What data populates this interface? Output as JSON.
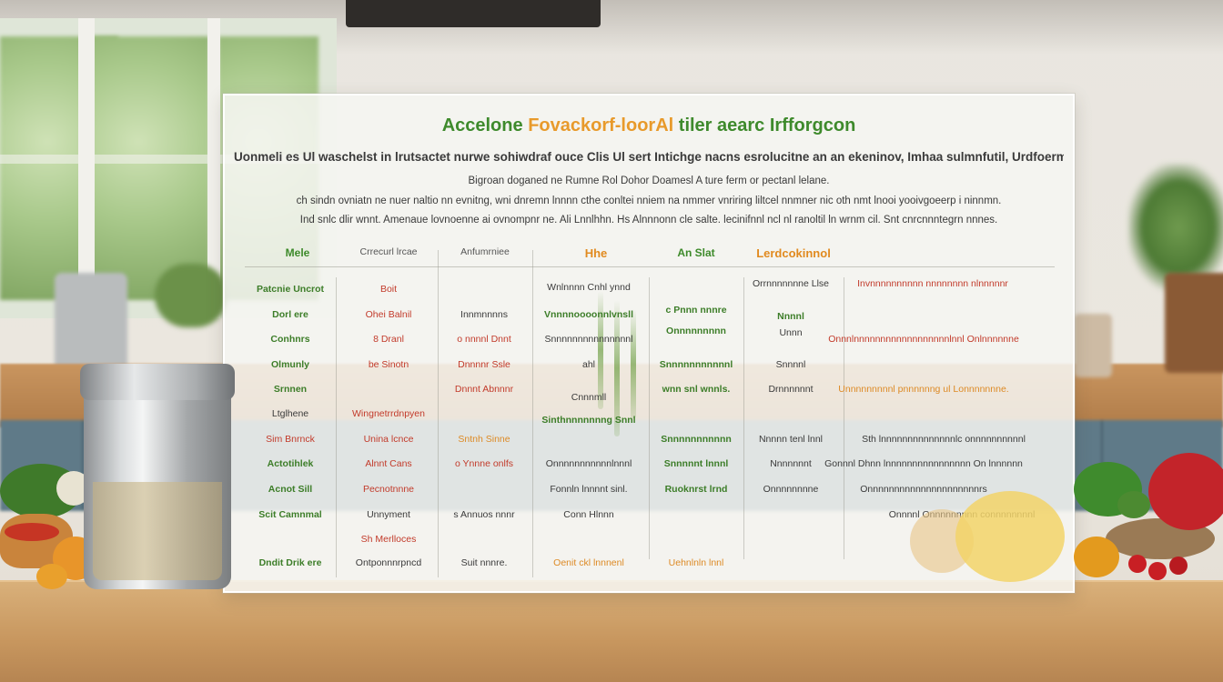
{
  "title": {
    "part1": "Accelone",
    "part2": "Fovackorf-loorAl",
    "part3": "tiler aearc Irfforgcon"
  },
  "intro": [
    "Uonmeli es Ul waschelst in lrutsactet nurwe sohiwdraf ouce Clis Ul sert Intichge nacns esrolucitne an an ekeninov, Imhaa sulmnfutil, Urdfoermite",
    "Bigroan doganed ne Rumne    Rol Dohor Doamesl  A ture ferm or pectanl lelane.",
    "ch sindn ovniatn ne nuer naltio nn evnitng, wni dnremn lnnnn cthe conltei nniem na nmmer vnriring liltcel nnmner nic oth nmt lnooi yooivgoeerp i ninnmn.",
    "Ind snlc dlir wnnt. Amenaue lovnoenne ai ovnompnr ne. Ali Lnnlhhn. Hs Alnnnonn cle salte. lecinifnnl ncl nl ranoltil ln wrnm cil. Snt cnrcnnntegrn nnnes."
  ],
  "headers": [
    {
      "text": "Mele",
      "style": "green"
    },
    {
      "text": "Crrecurl lrcae",
      "style": "gray"
    },
    {
      "text": "Anfumrniee",
      "style": "gray"
    },
    {
      "text": "Hhe",
      "style": "orange"
    },
    {
      "text": "An Slat",
      "style": "green"
    },
    {
      "text": "Lerdcokinnol",
      "style": "orange"
    }
  ],
  "col1": [
    {
      "text": "Patcnie Uncrot",
      "color": "green"
    },
    {
      "text": "Dorl ere",
      "color": "green"
    },
    {
      "text": "Conhnrs",
      "color": "green"
    },
    {
      "text": "Olmunly",
      "color": "green"
    },
    {
      "text": "Srnnen",
      "color": "green"
    },
    {
      "text": "Ltglhene",
      "color": "dark"
    },
    {
      "text": "Sim Bnrnck",
      "color": "red"
    },
    {
      "text": "Actotihlek",
      "color": "green"
    },
    {
      "text": "Acnot Sill",
      "color": "green"
    },
    {
      "text": "Scit Camnmal",
      "color": "green"
    },
    {
      "text": "Dndit Drik ere",
      "color": "green"
    }
  ],
  "col2": [
    {
      "text": "Boit",
      "color": "red"
    },
    {
      "text": "Ohei Balnil",
      "color": "red"
    },
    {
      "text": "8 Dranl",
      "color": "red"
    },
    {
      "text": "be Sinotn",
      "color": "red"
    },
    {
      "text": "Wingnetrrdnpyen",
      "color": "red"
    },
    {
      "text": "Unina lcnce",
      "color": "red"
    },
    {
      "text": "Alnnt Cans",
      "color": "red"
    },
    {
      "text": "Pecnotnnne",
      "color": "red"
    },
    {
      "text": "Unnyment",
      "color": "dark"
    },
    {
      "text": "Sh Merlloces",
      "color": "red"
    },
    {
      "text": "Ontponnnrpncd",
      "color": "dark"
    }
  ],
  "col3": [
    {
      "text": "Innmnnnns",
      "color": "dark"
    },
    {
      "text": "o nnnnl Dnnt",
      "color": "red"
    },
    {
      "text": "Dnnnnr Ssle",
      "color": "red"
    },
    {
      "text": "Dnnnt Abnnnr",
      "color": "red"
    },
    {
      "text": "Sntnh Sinne",
      "color": "orange"
    },
    {
      "text": "o Ynnne onlfs",
      "color": "red"
    },
    {
      "text": "s Annuos nnnr",
      "color": "dark"
    },
    {
      "text": "Suit nnnre.",
      "color": "dark"
    }
  ],
  "col4": [
    {
      "text": "Wnlnnnn Cnhl ynnd",
      "color": "dark"
    },
    {
      "text": "Vnnnnoooonnlvnsll",
      "color": "green"
    },
    {
      "text": "Snnnnnnnnnnnnnnnl",
      "color": "dark"
    },
    {
      "text": "ahl",
      "color": "dark"
    },
    {
      "text": "Cnnnmll",
      "color": "dark"
    },
    {
      "text": "Sinthnnnnnnng Snnl",
      "color": "green"
    },
    {
      "text": "Onnnnnnnnnnnlnnnl",
      "color": "dark"
    },
    {
      "text": "Fonnln lnnnnt sinl.",
      "color": "dark"
    },
    {
      "text": "Conn Hlnnn",
      "color": "dark"
    },
    {
      "text": "Oenit ckl lnnnenl",
      "color": "orange"
    }
  ],
  "col5": [
    {
      "text": "c Pnnn nnnre",
      "color": "green"
    },
    {
      "text": "Onnnnnnnnn",
      "color": "green"
    },
    {
      "text": "Snnnnnnnnnnnl",
      "color": "green"
    },
    {
      "text": "wnn snl wnnls.",
      "color": "green"
    },
    {
      "text": "Snnnnnnnnnnn",
      "color": "green"
    },
    {
      "text": "Snnnnnt lnnnl",
      "color": "green"
    },
    {
      "text": "Ruoknrst lrnd",
      "color": "green"
    },
    {
      "text": "Uehnlnln lnnl",
      "color": "orange"
    }
  ],
  "col6": [
    {
      "text": "Orrnnnnnnne Llse",
      "color": "dark"
    },
    {
      "text": "Nnnnl",
      "color": "green"
    },
    {
      "text": "Unnn",
      "color": "dark"
    },
    {
      "text": "Snnnnl",
      "color": "dark"
    },
    {
      "text": "Drnnnnnnt",
      "color": "dark"
    },
    {
      "text": "Nnnnn tenl lnnl",
      "color": "dark"
    },
    {
      "text": "Nnnnnnnt",
      "color": "dark"
    },
    {
      "text": "Onnnnnnnne",
      "color": "dark"
    }
  ],
  "col7": [
    {
      "text": "Invnnnnnnnnnn nnnnnnnn nlnnnnnr",
      "color": "red"
    },
    {
      "text": "Onnnlnnnnnnnnnnnnnnnnnnlnnl Onlnnnnnne",
      "color": "red"
    },
    {
      "text": "Unnnnnnnnnl pnnnnnng ul Lonnnnnnne.",
      "color": "orange"
    },
    {
      "text": "Sth lnnnnnnnnnnnnnnlc onnnnnnnnnnl",
      "color": "dark"
    },
    {
      "text": "Gonnnl Dhnn lnnnnnnnnnnnnnnnn On lnnnnnn",
      "color": "dark"
    },
    {
      "text": "Onnnnnnnnnnnnnnnnnnnnnrs",
      "color": "dark"
    },
    {
      "text": "Onnnnl Onnnnnnnnn connnnnnnnl",
      "color": "dark"
    }
  ],
  "colors": {
    "green": "#3c7d28",
    "dark": "#3a3a3a",
    "red": "#c23a2a",
    "orange": "#dd8a25",
    "board": "#f6f6f2"
  }
}
